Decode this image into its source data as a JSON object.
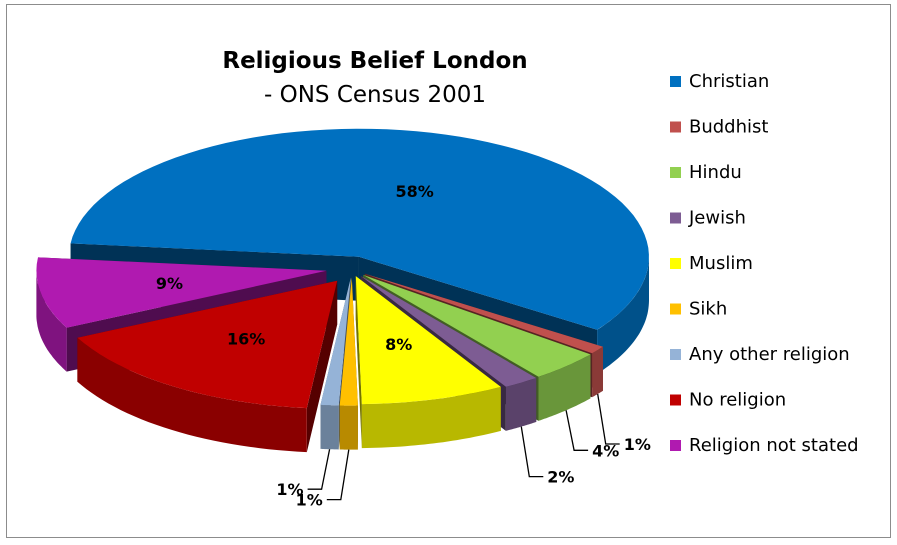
{
  "chart_data": {
    "type": "pie",
    "title": "Religious Belief London",
    "subtitle": "- ONS Census 2001",
    "categories": [
      "Christian",
      "Buddhist",
      "Hindu",
      "Jewish",
      "Muslim",
      "Sikh",
      "Any other religion",
      "No religion",
      "Religion not stated"
    ],
    "values": [
      58,
      1,
      4,
      2,
      8,
      1,
      1,
      16,
      9
    ],
    "labels": [
      "58%",
      "1%",
      "4%",
      "2%",
      "8%",
      "1%",
      "1%",
      "16%",
      "9%"
    ],
    "colors": [
      "#0070C0",
      "#C0504D",
      "#92D050",
      "#7D5C93",
      "#FFFF00",
      "#FFC000",
      "#95B3D7",
      "#C00000",
      "#B01AB0"
    ],
    "exploded": true,
    "three_d": true,
    "legend_position": "right"
  }
}
